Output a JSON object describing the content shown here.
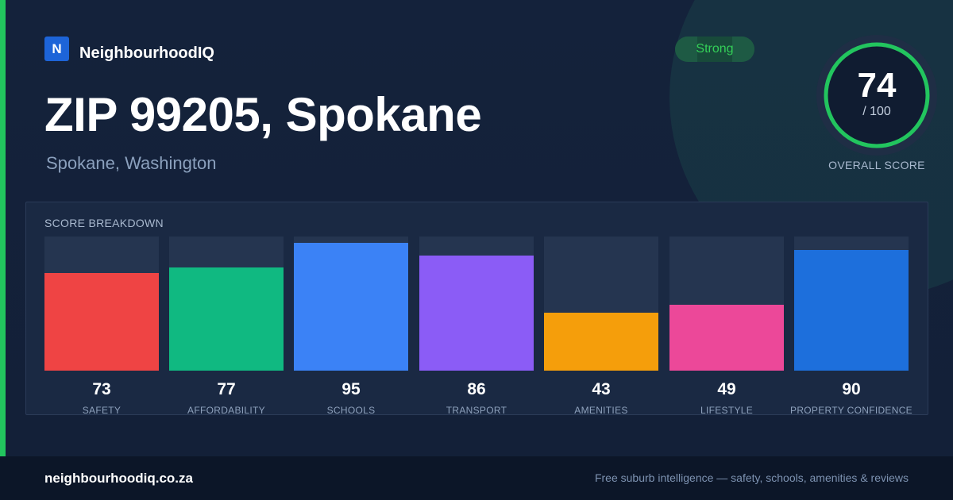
{
  "brand": {
    "logo_letter": "N",
    "name": "NeighbourhoodIQ"
  },
  "header": {
    "title": "ZIP 99205, Spokane",
    "subtitle": "Spokane, Washington"
  },
  "badge": {
    "label": "Strong"
  },
  "overall": {
    "score": "74",
    "max": "/ 100",
    "label": "OVERALL SCORE",
    "score_value": 74,
    "ring_color": "#22c55e"
  },
  "breakdown": {
    "title": "SCORE BREAKDOWN",
    "items": [
      {
        "value": "73",
        "label": "SAFETY",
        "score": 73,
        "color": "#ef4444"
      },
      {
        "value": "77",
        "label": "AFFORDABILITY",
        "score": 77,
        "color": "#10b981"
      },
      {
        "value": "95",
        "label": "SCHOOLS",
        "score": 95,
        "color": "#3b82f6"
      },
      {
        "value": "86",
        "label": "TRANSPORT",
        "score": 86,
        "color": "#8b5cf6"
      },
      {
        "value": "43",
        "label": "AMENITIES",
        "score": 43,
        "color": "#f59e0b"
      },
      {
        "value": "49",
        "label": "LIFESTYLE",
        "score": 49,
        "color": "#ec4899"
      },
      {
        "value": "90",
        "label": "PROPERTY CONFIDENCE",
        "score": 90,
        "color": "#1d6fdc"
      }
    ]
  },
  "footer": {
    "domain": "neighbourhoodiq.co.za",
    "tagline": "Free suburb intelligence — safety, schools, amenities & reviews"
  }
}
